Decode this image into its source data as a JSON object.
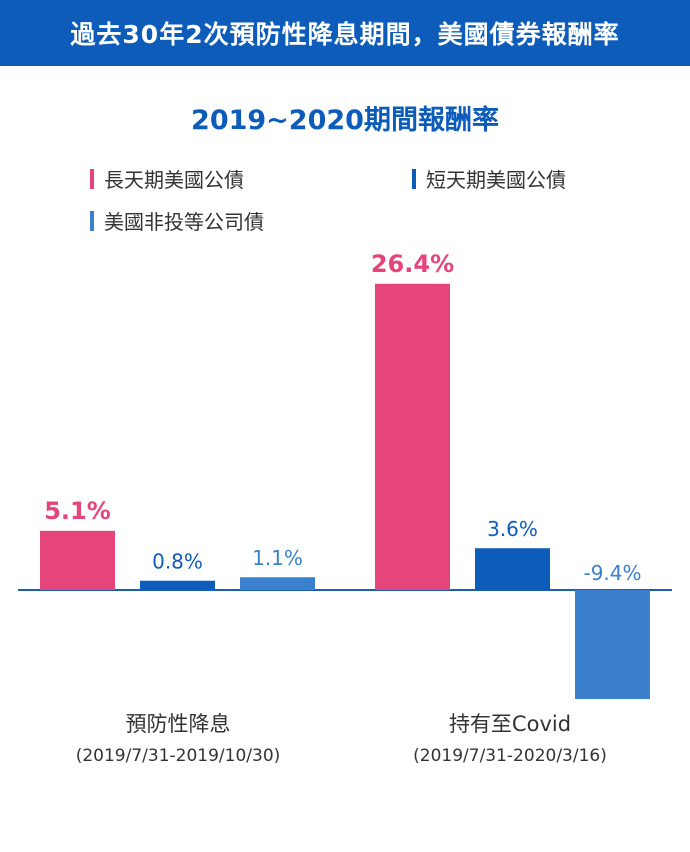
{
  "banner": {
    "title": "過去30年2次預防性降息期間，美國債券報酬率"
  },
  "chart_data": {
    "type": "bar",
    "title": "2019~2020期間報酬率",
    "categories": [
      "預防性降息",
      "持有至Covid"
    ],
    "category_ranges": [
      "(2019/7/31-2019/10/30)",
      "(2019/7/31-2020/3/16)"
    ],
    "series": [
      {
        "name": "長天期美國公債",
        "color": "#e5457a",
        "values": [
          5.1,
          26.4
        ],
        "labels": [
          "5.1%",
          "26.4%"
        ]
      },
      {
        "name": "短天期美國公債",
        "color": "#0d5cba",
        "values": [
          0.8,
          3.6
        ],
        "labels": [
          "0.8%",
          "3.6%"
        ]
      },
      {
        "name": "美國非投等公司債",
        "color": "#3a80cc",
        "values": [
          1.1,
          -9.4
        ],
        "labels": [
          "1.1%",
          "-9.4%"
        ]
      }
    ],
    "axis_color": "#1a5fb4",
    "grid": false,
    "legend_placement": "top-left"
  }
}
